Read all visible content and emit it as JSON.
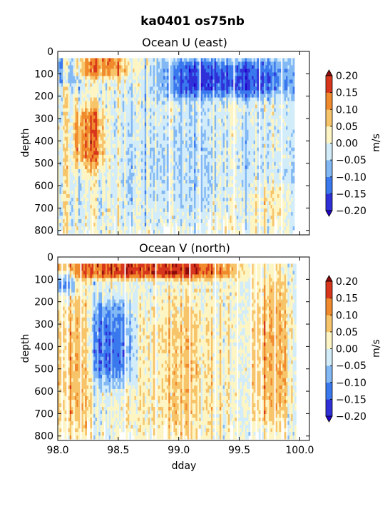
{
  "figure": {
    "title": "ka0401 os75nb"
  },
  "chart_data": [
    {
      "type": "heatmap",
      "title": "Ocean U (east)",
      "xlabel": "",
      "ylabel": "depth",
      "xlim": [
        98.0,
        100.08
      ],
      "ylim": [
        820,
        0
      ],
      "x_ticks": [
        98.0,
        98.5,
        99.0,
        99.5,
        100.0
      ],
      "x_tick_labels_shown": false,
      "y_ticks": [
        0,
        100,
        200,
        300,
        400,
        500,
        600,
        700,
        800
      ],
      "y_tick_labels": [
        "0",
        "100",
        "200",
        "300",
        "400",
        "500",
        "600",
        "700",
        "800"
      ],
      "data_x_range": [
        98.0,
        99.97
      ],
      "data_depth_range": [
        30,
        800
      ],
      "colorbar": {
        "label": "m/s",
        "levels": [
          -0.2,
          -0.15,
          -0.1,
          -0.05,
          0.0,
          0.05,
          0.1,
          0.15,
          0.2
        ],
        "tick_labels": [
          "0.20",
          "0.15",
          "0.10",
          "0.05",
          "0.00",
          "−0.05",
          "−0.10",
          "−0.15",
          "−0.20"
        ],
        "extend": "both"
      },
      "features": [
        {
          "x": [
            98.0,
            98.15
          ],
          "depth": [
            30,
            110
          ],
          "value": -0.12
        },
        {
          "x": [
            98.05,
            98.55
          ],
          "depth": [
            30,
            90
          ],
          "value": 0.12
        },
        {
          "x": [
            98.15,
            98.35
          ],
          "depth": [
            250,
            500
          ],
          "value": 0.13
        },
        {
          "x": [
            98.85,
            99.9
          ],
          "depth": [
            40,
            180
          ],
          "value": -0.16
        },
        {
          "x": [
            98.5,
            99.9
          ],
          "depth": [
            200,
            750
          ],
          "value": -0.04
        },
        {
          "x": [
            99.6,
            99.9
          ],
          "depth": [
            600,
            750
          ],
          "value": 0.04
        }
      ]
    },
    {
      "type": "heatmap",
      "title": "Ocean V (north)",
      "xlabel": "dday",
      "ylabel": "depth",
      "xlim": [
        98.0,
        100.08
      ],
      "ylim": [
        820,
        0
      ],
      "x_ticks": [
        98.0,
        98.5,
        99.0,
        99.5,
        100.0
      ],
      "x_tick_labels": [
        "98.0",
        "98.5",
        "99.0",
        "99.5",
        "100.0"
      ],
      "y_ticks": [
        0,
        100,
        200,
        300,
        400,
        500,
        600,
        700,
        800
      ],
      "y_tick_labels": [
        "0",
        "100",
        "200",
        "300",
        "400",
        "500",
        "600",
        "700",
        "800"
      ],
      "data_x_range": [
        98.0,
        99.97
      ],
      "data_depth_range": [
        30,
        800
      ],
      "colorbar": {
        "label": "m/s",
        "levels": [
          -0.2,
          -0.15,
          -0.1,
          -0.05,
          0.0,
          0.05,
          0.1,
          0.15,
          0.2
        ],
        "tick_labels": [
          "0.20",
          "0.15",
          "0.10",
          "0.05",
          "0.00",
          "−0.05",
          "−0.10",
          "−0.15",
          "−0.20"
        ],
        "extend": "both"
      },
      "features": [
        {
          "x": [
            98.0,
            99.45
          ],
          "depth": [
            30,
            70
          ],
          "value": 0.17
        },
        {
          "x": [
            98.0,
            98.1
          ],
          "depth": [
            80,
            140
          ],
          "value": -0.12
        },
        {
          "x": [
            98.0,
            98.25
          ],
          "depth": [
            150,
            800
          ],
          "value": 0.08
        },
        {
          "x": [
            98.3,
            98.6
          ],
          "depth": [
            200,
            550
          ],
          "value": -0.13
        },
        {
          "x": [
            98.6,
            99.3
          ],
          "depth": [
            200,
            800
          ],
          "value": 0.04
        },
        {
          "x": [
            99.6,
            99.9
          ],
          "depth": [
            80,
            750
          ],
          "value": 0.09
        }
      ]
    }
  ]
}
